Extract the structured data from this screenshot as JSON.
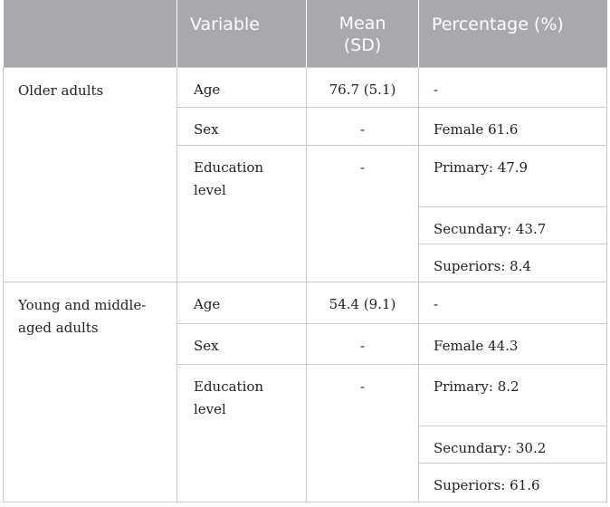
{
  "table": {
    "headers": [
      "",
      "Variable",
      "Mean (SD)",
      "Percentage (%)"
    ],
    "header_mean_line1": "Mean",
    "header_mean_line2": "(SD)",
    "groups": [
      {
        "label": "Older adults",
        "rows": [
          {
            "variable": "Age",
            "mean": "76.7 (5.1)",
            "percentage": "-"
          },
          {
            "variable": "Sex",
            "mean": "-",
            "percentage": "Female 61.6"
          },
          {
            "variable": "Education level",
            "mean": "-",
            "percentages": [
              "Primary: 47.9",
              "Secundary: 43.7",
              "Superiors: 8.4"
            ]
          }
        ]
      },
      {
        "label": "Young and middle-aged adults",
        "rows": [
          {
            "variable": "Age",
            "mean": "54.4 (9.1)",
            "percentage": "-"
          },
          {
            "variable": "Sex",
            "mean": "-",
            "percentage": "Female 44.3"
          },
          {
            "variable": "Education level",
            "mean": "-",
            "percentages": [
              "Primary: 8.2",
              "Secundary: 30.2",
              "Superiors: 61.6"
            ]
          }
        ]
      }
    ]
  },
  "colors": {
    "header_bg": "#a7a9ac",
    "header_text": "#ffffff",
    "border": "#c9c9c9",
    "body_text": "#222222"
  }
}
